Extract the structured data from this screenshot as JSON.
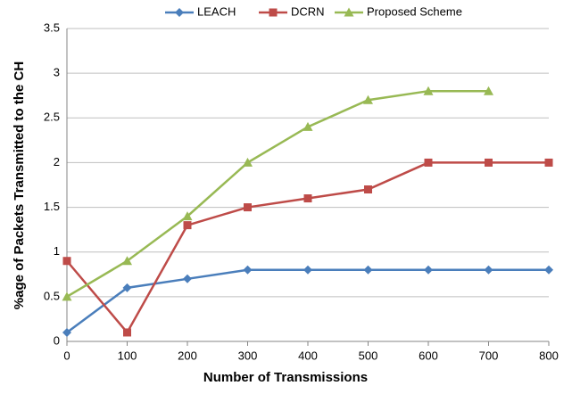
{
  "chart_data": {
    "type": "line",
    "x": [
      0,
      100,
      200,
      300,
      400,
      500,
      600,
      700,
      800
    ],
    "xlim": [
      0,
      800
    ],
    "xticks": [
      0,
      100,
      200,
      300,
      400,
      500,
      600,
      700,
      800
    ],
    "ylim": [
      0,
      3.5
    ],
    "yticks": [
      0,
      0.5,
      1,
      1.5,
      2,
      2.5,
      3,
      3.5
    ],
    "xlabel": "Number of Transmissions",
    "ylabel": "%age of Packets Transmitted to the CH",
    "grid": true,
    "legend": "top",
    "series": [
      {
        "name": "LEACH",
        "color": "#4a7ebb",
        "marker": "diamond",
        "values": [
          0.1,
          0.6,
          0.7,
          0.8,
          0.8,
          0.8,
          0.8,
          0.8,
          0.8
        ]
      },
      {
        "name": "DCRN",
        "color": "#be4b48",
        "marker": "square",
        "values": [
          0.9,
          0.1,
          1.3,
          1.5,
          1.6,
          1.7,
          2.0,
          2.0,
          2.0
        ]
      },
      {
        "name": "Proposed Scheme",
        "color": "#98b954",
        "marker": "triangle",
        "values": [
          0.5,
          0.9,
          1.4,
          2.0,
          2.4,
          2.7,
          2.8,
          2.8,
          null
        ]
      }
    ]
  }
}
